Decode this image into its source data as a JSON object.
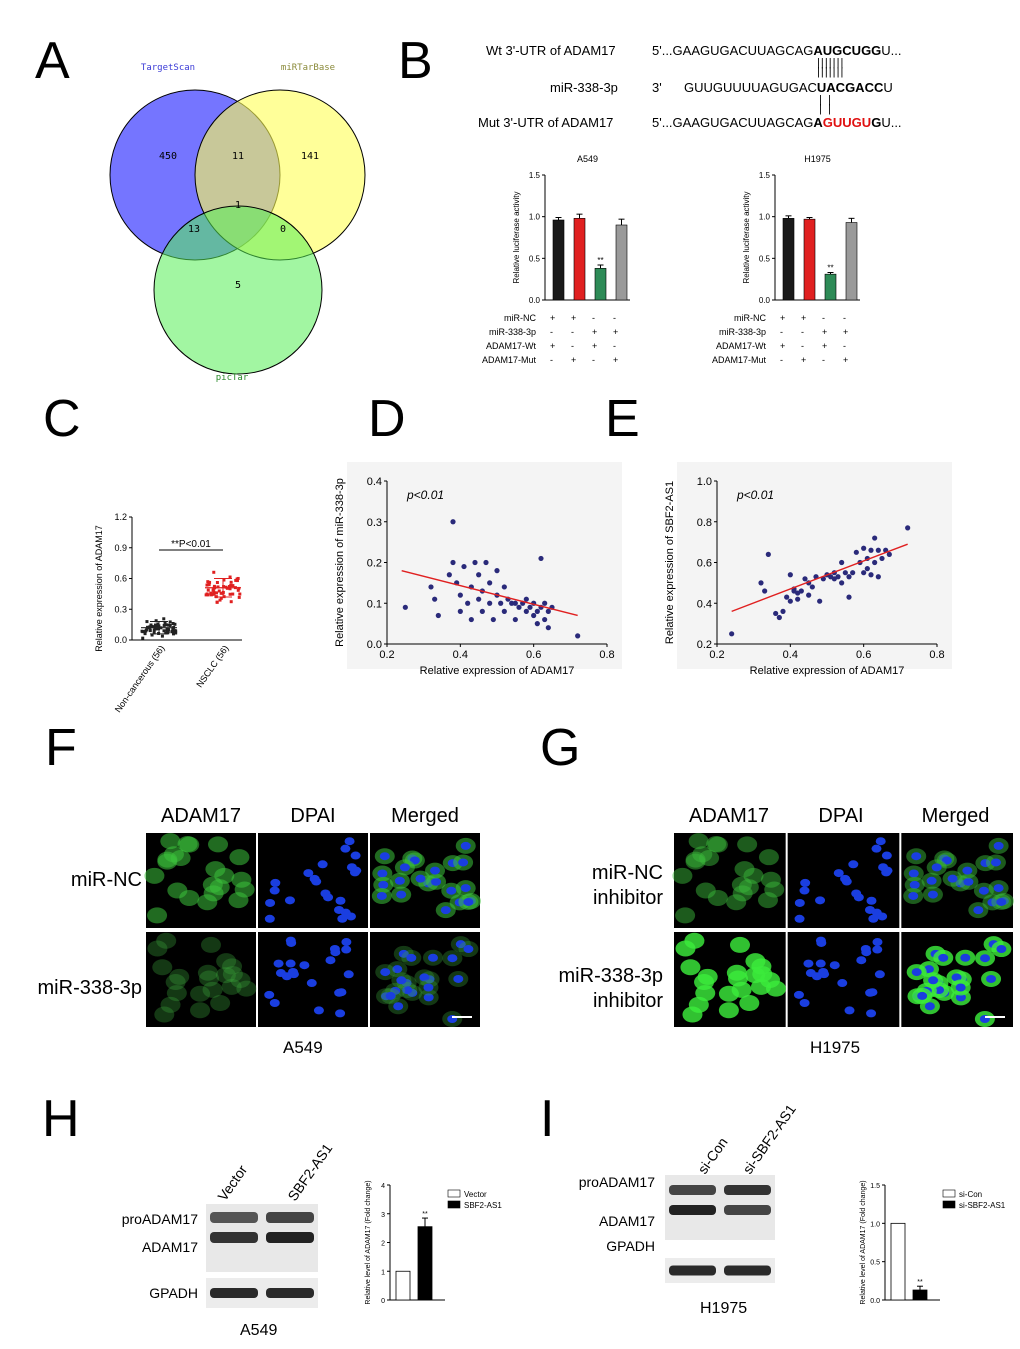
{
  "panel_labels": {
    "A": "A",
    "B": "B",
    "C": "C",
    "D": "D",
    "E": "E",
    "F": "F",
    "G": "G",
    "H": "H",
    "I": "I"
  },
  "venn": {
    "sets": [
      {
        "name": "TargetScan",
        "color": "#6666ff",
        "text_color": "#3a3ad6"
      },
      {
        "name": "miRTarBase",
        "color": "#ffff66",
        "text_color": "#8a8a3a"
      },
      {
        "name": "picTar",
        "color": "#66ee66",
        "text_color": "#2d8a2d"
      }
    ],
    "counts": {
      "ts_only": "450",
      "ts_mt": "11",
      "mt_only": "141",
      "ts_pt": "13",
      "all": "1",
      "mt_pt": "0",
      "pt_only": "5"
    }
  },
  "sequence": {
    "wt_label": "Wt 3'-UTR of ADAM17",
    "wt_prefix": "5'...GAAGUGACUUAGCAG",
    "wt_bold": "AUGCUGG",
    "wt_suffix": "U...",
    "mir_label": "miR-338-3p",
    "mir_dir": "3'",
    "mir_prefix": "GUUGUUUUAGUGAC",
    "mir_bold": "UACGACC",
    "mir_suffix": "U",
    "mut_label": "Mut 3'-UTR of ADAM17",
    "mut_prefix": "5'...GAAGUGACUUAGCAG",
    "mut_bold1": "A",
    "mut_red": "GUUGU",
    "mut_bold2": "G",
    "mut_suffix": "U...",
    "pair_top": "| | | | | | |",
    "pair_bottom": "|  |"
  },
  "luciferase": {
    "rows": [
      "miR-NC",
      "miR-338-3p",
      "ADAM17-Wt",
      "ADAM17-Mut"
    ],
    "signs": [
      [
        "+",
        "+",
        "-",
        "-"
      ],
      [
        "-",
        "-",
        "+",
        "+"
      ],
      [
        "+",
        "-",
        "+",
        "-"
      ],
      [
        "-",
        "+",
        "-",
        "+"
      ]
    ],
    "charts": [
      {
        "title": "A549",
        "ylabel": "Relative luciferase activity",
        "ylim": [
          0,
          1.5
        ],
        "ticks": [
          "0.0",
          "0.5",
          "1.0",
          "1.5"
        ],
        "values": [
          0.96,
          0.98,
          0.38,
          0.9
        ],
        "errors": [
          0.03,
          0.05,
          0.04,
          0.07
        ],
        "colors": [
          "#1a1a1a",
          "#e02020",
          "#2e8b57",
          "#9a9a9a"
        ],
        "sig": "**"
      },
      {
        "title": "H1975",
        "ylabel": "Relative luciferase activity",
        "ylim": [
          0,
          1.5
        ],
        "ticks": [
          "0.0",
          "0.5",
          "1.0",
          "1.5"
        ],
        "values": [
          0.98,
          0.97,
          0.31,
          0.93
        ],
        "errors": [
          0.03,
          0.02,
          0.02,
          0.05
        ],
        "colors": [
          "#1a1a1a",
          "#e02020",
          "#2e8b57",
          "#9a9a9a"
        ],
        "sig": "**"
      }
    ]
  },
  "panel_c": {
    "ylabel": "Relative expression of ADAM17",
    "ticks": [
      "0.0",
      "0.3",
      "0.6",
      "0.9",
      "1.2"
    ],
    "groups": [
      "Non-cancerous (56)",
      "NSCLC (56)"
    ],
    "sig": "**P<0.01",
    "means": [
      0.12,
      0.51
    ]
  },
  "panel_d": {
    "ylabel": "Relative expression of miR-338-3p",
    "xlabel": "Relative expression of ADAM17",
    "pval": "p<0.01",
    "xticks": [
      "0.2",
      "0.4",
      "0.6",
      "0.8"
    ],
    "yticks": [
      "0.0",
      "0.1",
      "0.2",
      "0.3",
      "0.4"
    ],
    "xlim": [
      0.2,
      0.8
    ],
    "ylim": [
      0,
      0.4
    ],
    "fit": [
      [
        0.24,
        0.18
      ],
      [
        0.72,
        0.07
      ]
    ],
    "points": [
      [
        0.25,
        0.09
      ],
      [
        0.32,
        0.14
      ],
      [
        0.33,
        0.11
      ],
      [
        0.34,
        0.07
      ],
      [
        0.37,
        0.17
      ],
      [
        0.38,
        0.3
      ],
      [
        0.38,
        0.2
      ],
      [
        0.39,
        0.15
      ],
      [
        0.4,
        0.12
      ],
      [
        0.4,
        0.08
      ],
      [
        0.41,
        0.19
      ],
      [
        0.42,
        0.1
      ],
      [
        0.43,
        0.14
      ],
      [
        0.43,
        0.06
      ],
      [
        0.44,
        0.2
      ],
      [
        0.45,
        0.17
      ],
      [
        0.45,
        0.11
      ],
      [
        0.46,
        0.08
      ],
      [
        0.46,
        0.13
      ],
      [
        0.47,
        0.2
      ],
      [
        0.48,
        0.15
      ],
      [
        0.48,
        0.1
      ],
      [
        0.49,
        0.06
      ],
      [
        0.5,
        0.18
      ],
      [
        0.5,
        0.12
      ],
      [
        0.51,
        0.1
      ],
      [
        0.52,
        0.14
      ],
      [
        0.52,
        0.08
      ],
      [
        0.53,
        0.11
      ],
      [
        0.54,
        0.1
      ],
      [
        0.55,
        0.1
      ],
      [
        0.55,
        0.06
      ],
      [
        0.56,
        0.09
      ],
      [
        0.57,
        0.1
      ],
      [
        0.58,
        0.08
      ],
      [
        0.58,
        0.11
      ],
      [
        0.59,
        0.09
      ],
      [
        0.6,
        0.07
      ],
      [
        0.6,
        0.1
      ],
      [
        0.61,
        0.08
      ],
      [
        0.61,
        0.05
      ],
      [
        0.62,
        0.09
      ],
      [
        0.62,
        0.21
      ],
      [
        0.63,
        0.06
      ],
      [
        0.63,
        0.1
      ],
      [
        0.64,
        0.04
      ],
      [
        0.64,
        0.08
      ],
      [
        0.65,
        0.09
      ],
      [
        0.72,
        0.02
      ]
    ]
  },
  "panel_e": {
    "ylabel": "Relative expression of SBF2-AS1",
    "xlabel": "Relative expression of ADAM17",
    "pval": "p<0.01",
    "xticks": [
      "0.2",
      "0.4",
      "0.6",
      "0.8"
    ],
    "yticks": [
      "0.2",
      "0.4",
      "0.6",
      "0.8",
      "1.0"
    ],
    "xlim": [
      0.2,
      0.8
    ],
    "ylim": [
      0.2,
      1.0
    ],
    "fit": [
      [
        0.24,
        0.36
      ],
      [
        0.72,
        0.69
      ]
    ],
    "points": [
      [
        0.24,
        0.25
      ],
      [
        0.32,
        0.5
      ],
      [
        0.33,
        0.46
      ],
      [
        0.34,
        0.64
      ],
      [
        0.36,
        0.35
      ],
      [
        0.37,
        0.33
      ],
      [
        0.38,
        0.36
      ],
      [
        0.39,
        0.43
      ],
      [
        0.4,
        0.41
      ],
      [
        0.4,
        0.54
      ],
      [
        0.41,
        0.47
      ],
      [
        0.41,
        0.46
      ],
      [
        0.42,
        0.45
      ],
      [
        0.42,
        0.42
      ],
      [
        0.43,
        0.46
      ],
      [
        0.44,
        0.52
      ],
      [
        0.45,
        0.44
      ],
      [
        0.45,
        0.5
      ],
      [
        0.46,
        0.48
      ],
      [
        0.47,
        0.53
      ],
      [
        0.48,
        0.41
      ],
      [
        0.49,
        0.52
      ],
      [
        0.5,
        0.54
      ],
      [
        0.51,
        0.53
      ],
      [
        0.52,
        0.55
      ],
      [
        0.52,
        0.52
      ],
      [
        0.53,
        0.53
      ],
      [
        0.54,
        0.5
      ],
      [
        0.54,
        0.6
      ],
      [
        0.55,
        0.55
      ],
      [
        0.56,
        0.53
      ],
      [
        0.56,
        0.43
      ],
      [
        0.57,
        0.55
      ],
      [
        0.58,
        0.65
      ],
      [
        0.59,
        0.6
      ],
      [
        0.6,
        0.55
      ],
      [
        0.6,
        0.67
      ],
      [
        0.61,
        0.62
      ],
      [
        0.61,
        0.57
      ],
      [
        0.62,
        0.66
      ],
      [
        0.62,
        0.54
      ],
      [
        0.63,
        0.72
      ],
      [
        0.63,
        0.6
      ],
      [
        0.64,
        0.66
      ],
      [
        0.64,
        0.53
      ],
      [
        0.65,
        0.62
      ],
      [
        0.66,
        0.66
      ],
      [
        0.67,
        0.64
      ],
      [
        0.72,
        0.77
      ]
    ]
  },
  "panel_f": {
    "headers": [
      "ADAM17",
      "DPAI",
      "Merged"
    ],
    "rows": [
      "miR-NC",
      "miR-338-3p"
    ],
    "caption": "A549"
  },
  "panel_g": {
    "headers": [
      "ADAM17",
      "DPAI",
      "Merged"
    ],
    "rows": [
      "miR-NC\ninhibitor",
      "miR-338-3p\ninhibitor"
    ],
    "rows_split": [
      [
        "miR-NC",
        "inhibitor"
      ],
      [
        "miR-338-3p",
        "inhibitor"
      ]
    ],
    "caption": "H1975"
  },
  "panel_h": {
    "lanes": [
      "Vector",
      "SBF2-AS1"
    ],
    "bands": [
      "proADAM17",
      "ADAM17",
      "GPADH"
    ],
    "caption": "A549",
    "chart": {
      "ylabel": "Relative level of ADAM17 (Fold change)",
      "ticks": [
        "0",
        "1",
        "2",
        "3",
        "4"
      ],
      "ylim": [
        0,
        4
      ],
      "values": [
        1.0,
        2.55
      ],
      "errors": [
        0,
        0.3
      ],
      "legend": [
        "Vector",
        "SBF2-AS1"
      ],
      "sig": "**"
    }
  },
  "panel_i": {
    "lanes": [
      "si-Con",
      "si-SBF2-AS1"
    ],
    "bands": [
      "proADAM17",
      "ADAM17",
      "GPADH"
    ],
    "caption": "H1975",
    "chart": {
      "ylabel": "Relative level of ADAM17 (Fold change)",
      "ticks": [
        "0.0",
        "0.5",
        "1.0",
        "1.5"
      ],
      "ylim": [
        0,
        1.5
      ],
      "values": [
        1.0,
        0.13
      ],
      "errors": [
        0,
        0.05
      ],
      "legend": [
        "si-Con",
        "si-SBF2-AS1"
      ],
      "sig": "**"
    }
  }
}
